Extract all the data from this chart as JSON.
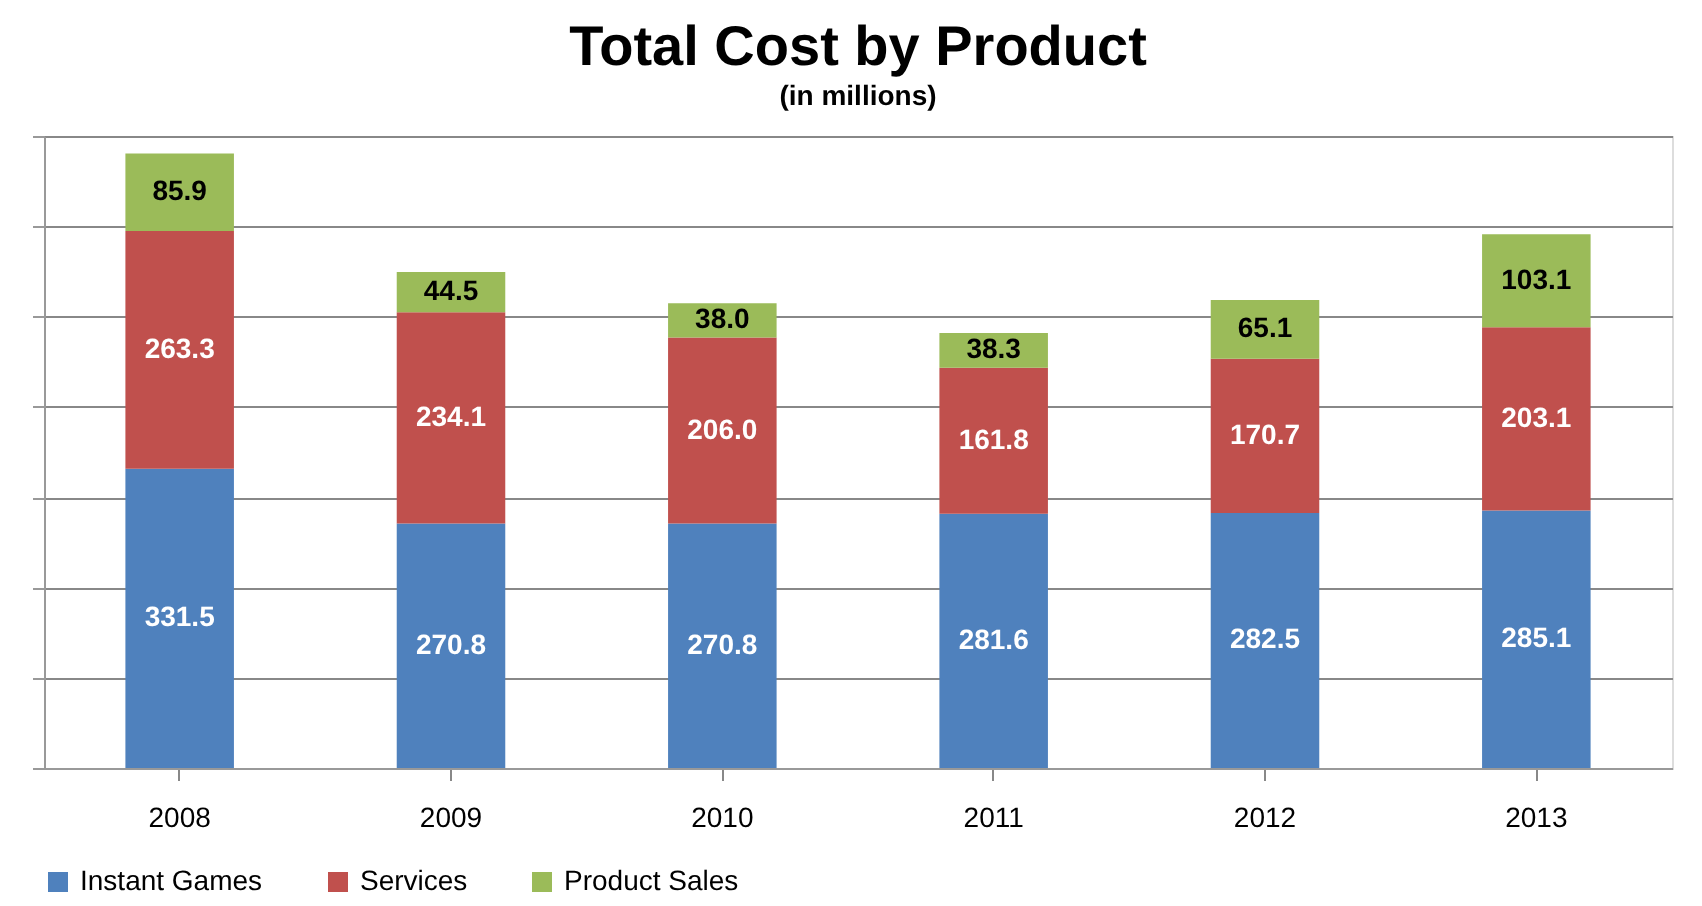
{
  "chart_data": {
    "type": "bar",
    "title": "Total Cost by Product",
    "subtitle": "(in millions)",
    "categories": [
      "2008",
      "2009",
      "2010",
      "2011",
      "2012",
      "2013"
    ],
    "series": [
      {
        "name": "Instant Games",
        "color": "#4f81bd",
        "values": [
          331.5,
          270.8,
          270.8,
          281.6,
          282.5,
          285.1
        ],
        "value_labels": [
          "331.5",
          "270.8",
          "270.8",
          "281.6",
          "282.5",
          "285.1"
        ]
      },
      {
        "name": "Services",
        "color": "#c0504d",
        "values": [
          263.3,
          234.1,
          206.0,
          161.8,
          170.7,
          203.1
        ],
        "value_labels": [
          "263.3",
          "234.1",
          "206.0",
          "161.8",
          "170.7",
          "203.1"
        ]
      },
      {
        "name": "Product Sales",
        "color": "#9bbb59",
        "values": [
          85.9,
          44.5,
          38.0,
          38.3,
          65.1,
          103.1
        ],
        "value_labels": [
          "85.9",
          "44.5",
          "38.0",
          "38.3",
          "65.1",
          "103.1"
        ]
      }
    ],
    "stacked": true,
    "ylim": [
      0,
      700
    ],
    "yticks": [
      {
        "value": 0,
        "label": null
      },
      {
        "value": 100,
        "label": null
      },
      {
        "value": 200,
        "label": null
      },
      {
        "value": 300,
        "label": null
      },
      {
        "value": 400,
        "label": null
      },
      {
        "value": 500,
        "label": null
      },
      {
        "value": 600,
        "label": null
      },
      {
        "value": 700,
        "label": null
      }
    ],
    "tick_labels": "x",
    "grid": "y",
    "legend": "bottom"
  }
}
